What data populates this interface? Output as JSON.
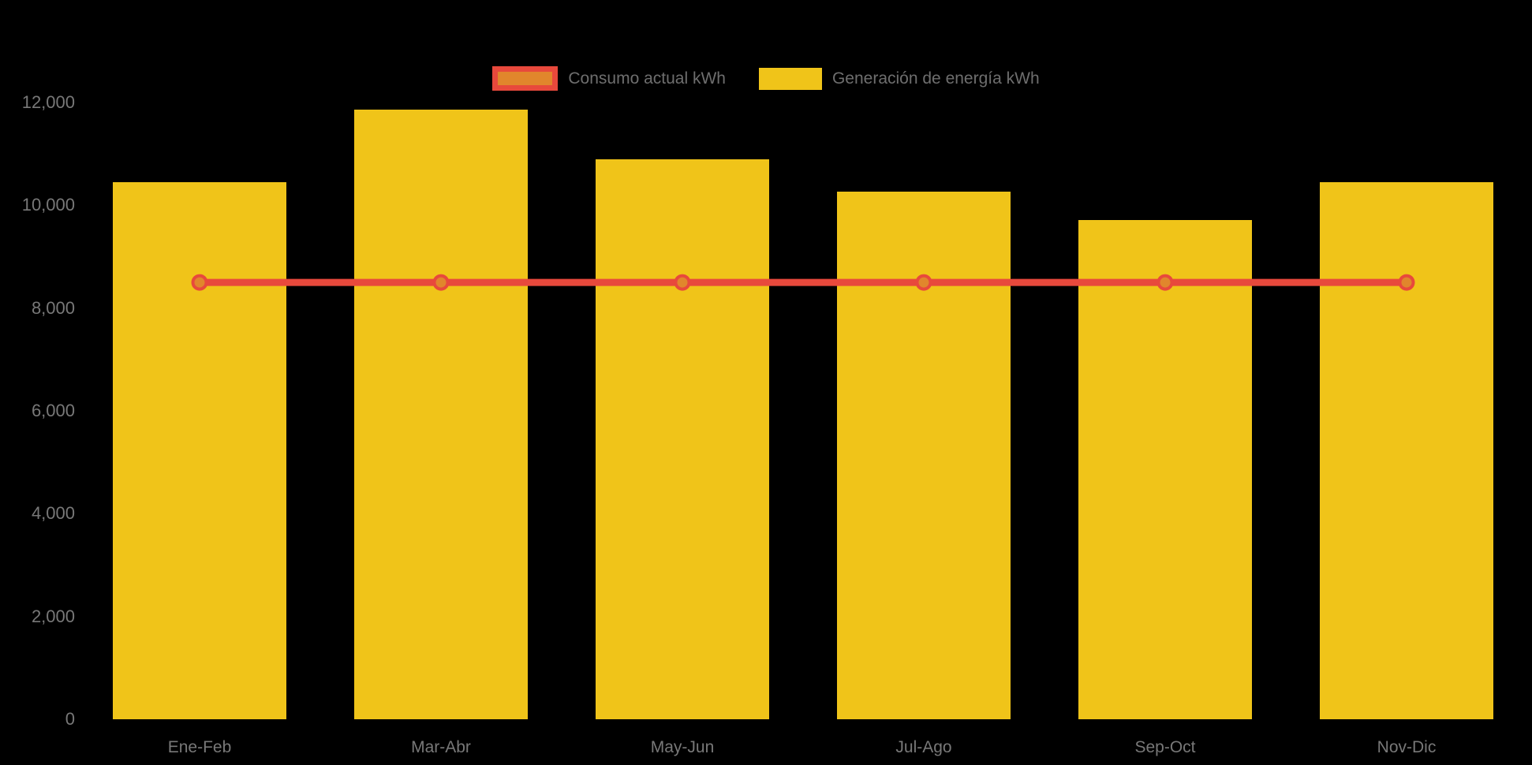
{
  "page": {
    "background": "#000000",
    "axis_text_color": "#787878",
    "legend_text_color": "#6E6E6E"
  },
  "legend": {
    "items": [
      {
        "label": "Consumo actual kWh",
        "fill": "#E1862C",
        "border": "#E8493C"
      },
      {
        "label": "Generación de energía kWh",
        "fill": "#F0C419",
        "border": "#F0C419"
      }
    ]
  },
  "chart_data": {
    "type": "bar",
    "title": "",
    "xlabel": "",
    "ylabel": "",
    "categories": [
      "Ene-Feb",
      "Mar-Abr",
      "May-Jun",
      "Jul-Ago",
      "Sep-Oct",
      "Nov-Dic"
    ],
    "series": [
      {
        "name": "Consumo actual kWh",
        "type": "line",
        "values": [
          8500,
          8500,
          8500,
          8500,
          8500,
          8500
        ],
        "color": "#E8493C",
        "marker_fill": "#E1862C",
        "marker_stroke": "#E8493C"
      },
      {
        "name": "Generación de energía kWh",
        "type": "bar",
        "values": [
          10450,
          11860,
          10900,
          10270,
          9720,
          10450
        ],
        "color": "#F0C419"
      }
    ],
    "ylim": [
      0,
      12000
    ],
    "ytick_values": [
      0,
      2000,
      4000,
      6000,
      8000,
      10000,
      12000
    ],
    "ytick_labels": [
      "0",
      "2,000",
      "4,000",
      "6,000",
      "8,000",
      "10,000",
      "12,000"
    ],
    "grid": false,
    "legend_position": "top-center"
  }
}
